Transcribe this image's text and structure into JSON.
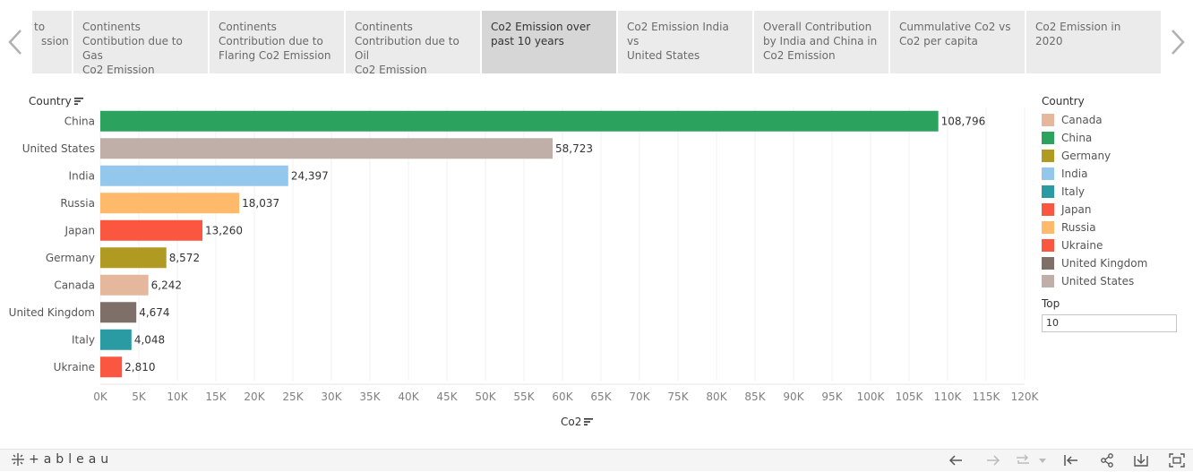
{
  "story": {
    "tabs": [
      {
        "label": "to\nssion",
        "width": 44,
        "active": false
      },
      {
        "label": "Continents\nContibution due to Gas\nCo2 Emission",
        "width": 150,
        "active": false
      },
      {
        "label": "Continents\nContribution due to\nFlaring Co2 Emission",
        "width": 150,
        "active": false
      },
      {
        "label": "Continents\nContribution due to Oil\nCo2 Emission",
        "width": 150,
        "active": false
      },
      {
        "label": "Co2 Emission over\npast 10 years",
        "width": 150,
        "active": true
      },
      {
        "label": "Co2 Emission India vs\nUnited States",
        "width": 150,
        "active": false
      },
      {
        "label": "Overall Contribution\nby India and China in\nCo2 Emission",
        "width": 150,
        "active": false
      },
      {
        "label": "Cummulative Co2 vs\nCo2 per capita",
        "width": 150,
        "active": false
      },
      {
        "label": "Co2 Emission in 2020",
        "width": 150,
        "active": false
      }
    ],
    "prev_icon": "chevron-left-icon",
    "next_icon": "chevron-right-icon"
  },
  "chart": {
    "row_header": "Country",
    "xaxis_title": "Co2"
  },
  "legend": {
    "title": "Country",
    "items": [
      {
        "label": "Canada",
        "color": "#e5b79d"
      },
      {
        "label": "China",
        "color": "#2ca25f"
      },
      {
        "label": "Germany",
        "color": "#b09a22"
      },
      {
        "label": "India",
        "color": "#93c8ec"
      },
      {
        "label": "Italy",
        "color": "#2a9aa3"
      },
      {
        "label": "Japan",
        "color": "#fb5640"
      },
      {
        "label": "Russia",
        "color": "#feb96a"
      },
      {
        "label": "Ukraine",
        "color": "#fb5640"
      },
      {
        "label": "United Kingdom",
        "color": "#7f6f69"
      },
      {
        "label": "United States",
        "color": "#bfafa8"
      }
    ]
  },
  "filter": {
    "title": "Top",
    "value": "10"
  },
  "toolbar": {
    "logo_text": "+ableau",
    "icons": [
      "undo-icon",
      "redo-icon",
      "revert-icon",
      "dropdown-icon",
      "jump-to-start-icon",
      "share-icon",
      "download-icon",
      "fullscreen-icon"
    ]
  },
  "chart_data": {
    "type": "bar",
    "orientation": "horizontal",
    "categories": [
      "China",
      "United States",
      "India",
      "Russia",
      "Japan",
      "Germany",
      "Canada",
      "United Kingdom",
      "Italy",
      "Ukraine"
    ],
    "values": [
      108796,
      58723,
      24397,
      18037,
      13260,
      8572,
      6242,
      4674,
      4048,
      2810
    ],
    "value_labels": [
      "108,796",
      "58,723",
      "24,397",
      "18,037",
      "13,260",
      "8,572",
      "6,242",
      "4,674",
      "4,048",
      "2,810"
    ],
    "colors": [
      "#2ca25f",
      "#bfafa8",
      "#93c8ec",
      "#feb96a",
      "#fb5640",
      "#b09a22",
      "#e5b79d",
      "#7f6f69",
      "#2a9aa3",
      "#fb5640"
    ],
    "xlabel": "Co2",
    "ylabel": "Country",
    "xlim": [
      0,
      120000
    ],
    "xticks": [
      0,
      5000,
      10000,
      15000,
      20000,
      25000,
      30000,
      35000,
      40000,
      45000,
      50000,
      55000,
      60000,
      65000,
      70000,
      75000,
      80000,
      85000,
      90000,
      95000,
      100000,
      105000,
      110000,
      115000,
      120000
    ],
    "xtick_labels": [
      "0K",
      "5K",
      "10K",
      "15K",
      "20K",
      "25K",
      "30K",
      "35K",
      "40K",
      "45K",
      "50K",
      "55K",
      "60K",
      "65K",
      "70K",
      "75K",
      "80K",
      "85K",
      "90K",
      "95K",
      "100K",
      "105K",
      "110K",
      "115K",
      "120K"
    ],
    "grid": true,
    "legend_position": "right"
  }
}
